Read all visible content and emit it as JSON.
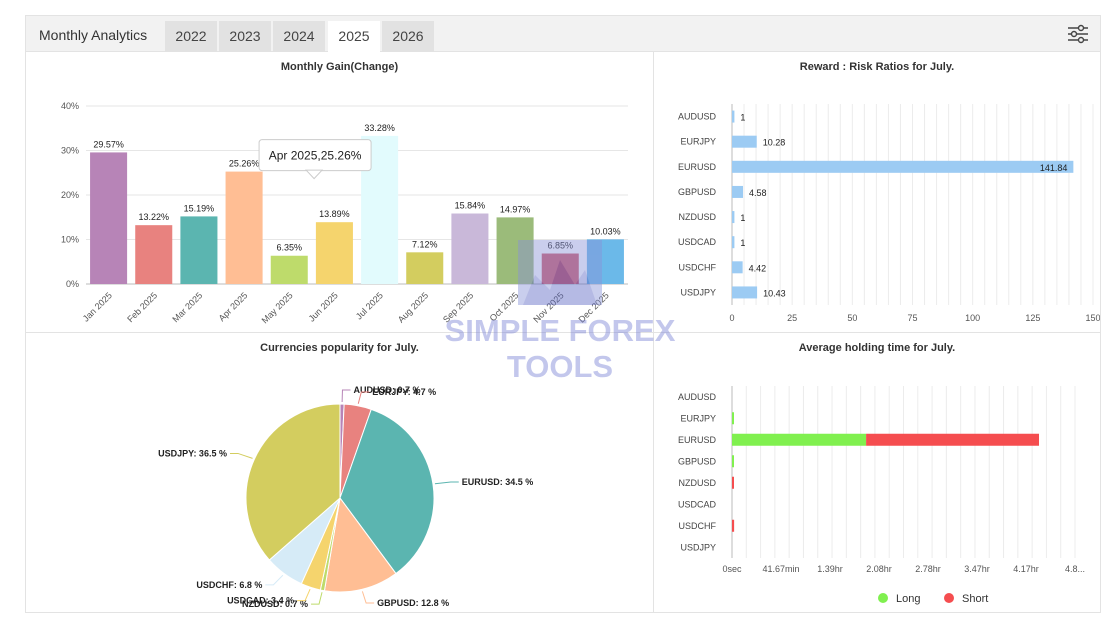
{
  "header": {
    "title": "Monthly Analytics",
    "tabs": [
      {
        "label": "2022",
        "active": false
      },
      {
        "label": "2023",
        "active": false
      },
      {
        "label": "2024",
        "active": false
      },
      {
        "label": "2025",
        "active": true
      },
      {
        "label": "2026",
        "active": false
      }
    ],
    "settings_icon": "sliders-icon"
  },
  "watermark": {
    "line1": "SIMPLE FOREX",
    "line2": "TOOLS"
  },
  "chart_data": [
    {
      "id": "monthly-gain",
      "type": "bar",
      "title": "Monthly Gain(Change)",
      "categories": [
        "Jan 2025",
        "Feb 2025",
        "Mar 2025",
        "Apr 2025",
        "May 2025",
        "Jun 2025",
        "Jul 2025",
        "Aug 2025",
        "Sep 2025",
        "Oct 2025",
        "Nov 2025",
        "Dec 2025"
      ],
      "values": [
        29.57,
        13.22,
        15.19,
        25.26,
        6.35,
        13.89,
        33.28,
        7.12,
        15.84,
        14.97,
        6.85,
        10.03
      ],
      "labels": [
        "29.57%",
        "13.22%",
        "15.19%",
        "25.26%",
        "6.35%",
        "13.89%",
        "33.28%",
        "7.12%",
        "15.84%",
        "14.97%",
        "6.85%",
        "10.03%"
      ],
      "colors": [
        "#b784b7",
        "#e8827f",
        "#5bb5b0",
        "#ffbe94",
        "#bedb6b",
        "#f5d46d",
        "#e2fbfd",
        "#d3cd5f",
        "#c9b8d9",
        "#9bbb7a",
        "#cf5a6c",
        "#6bb9e9"
      ],
      "yticks": [
        "0%",
        "10%",
        "20%",
        "30%",
        "40%"
      ],
      "ylim": [
        0,
        40
      ],
      "tooltip": "Apr 2025,25.26%"
    },
    {
      "id": "risk-ratios",
      "type": "bar",
      "title": "Reward : Risk Ratios for July.",
      "orientation": "horizontal",
      "categories": [
        "AUDUSD",
        "EURJPY",
        "EURUSD",
        "GBPUSD",
        "NZDUSD",
        "USDCAD",
        "USDCHF",
        "USDJPY"
      ],
      "values": [
        1,
        10.28,
        141.84,
        4.58,
        1,
        1,
        4.42,
        10.43
      ],
      "labels": [
        "1",
        "10.28",
        "141.84",
        "4.58",
        "1",
        "1",
        "4.42",
        "10.43"
      ],
      "color": "#9ccbf3",
      "xticks": [
        "0",
        "25",
        "50",
        "75",
        "100",
        "125",
        "150"
      ],
      "xlim": [
        0,
        150
      ]
    },
    {
      "id": "currency-popularity",
      "type": "pie",
      "title": "Currencies popularity for July.",
      "slices": [
        {
          "label": "AUDUSD: 0.7 %",
          "value": 0.7,
          "color": "#b784b7"
        },
        {
          "label": "EURJPY: 4.7 %",
          "value": 4.7,
          "color": "#e8827f"
        },
        {
          "label": "EURUSD: 34.5 %",
          "value": 34.5,
          "color": "#5bb5b0"
        },
        {
          "label": "GBPUSD: 12.8 %",
          "value": 12.8,
          "color": "#ffbe94"
        },
        {
          "label": "NZDUSD: 0.7 %",
          "value": 0.7,
          "color": "#bedb6b"
        },
        {
          "label": "USDCAD: 3.4 %",
          "value": 3.4,
          "color": "#f5d46d"
        },
        {
          "label": "USDCHF: 6.8 %",
          "value": 6.8,
          "color": "#d6ebf7"
        },
        {
          "label": "USDJPY: 36.5 %",
          "value": 36.5,
          "color": "#d3cd5f"
        }
      ]
    },
    {
      "id": "holding-time",
      "type": "bar",
      "title": "Average holding time for July.",
      "orientation": "horizontal",
      "stacked": true,
      "categories": [
        "AUDUSD",
        "EURJPY",
        "EURUSD",
        "GBPUSD",
        "NZDUSD",
        "USDCAD",
        "USDCHF",
        "USDJPY"
      ],
      "xticks": [
        "0sec",
        "41.67min",
        "1.39hr",
        "2.08hr",
        "2.78hr",
        "3.47hr",
        "4.17hr",
        "4.8..."
      ],
      "series": [
        {
          "name": "Long",
          "color": "#80f04f",
          "values_hr": [
            0,
            0.02,
            1.9,
            0.02,
            0,
            0,
            0,
            0
          ]
        },
        {
          "name": "Short",
          "color": "#f54d4f",
          "values_hr": [
            0,
            0,
            2.45,
            0,
            0.02,
            0,
            0.03,
            0
          ]
        }
      ],
      "xlim_hr": [
        0,
        4.86
      ],
      "legend": "bottom"
    }
  ]
}
